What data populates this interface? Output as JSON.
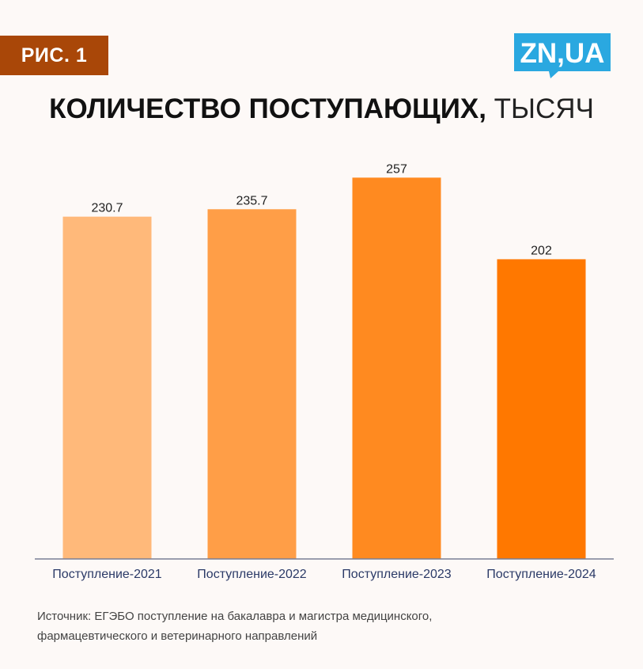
{
  "figure_label": "РИС. 1",
  "logo_text": "ZN,UA",
  "title": {
    "bold_part": "КОЛИЧЕСТВО ПОСТУПАЮЩИХ,",
    "light_part": "ТЫСЯЧ"
  },
  "colors": {
    "badge": "#a94708",
    "logo": "#2aa8e0",
    "axis": "#7a7f96",
    "label_text": "#2b3a67",
    "bars": [
      "#ffb97a",
      "#ff9e47",
      "#ff8a20",
      "#ff7800"
    ]
  },
  "chart_data": {
    "type": "bar",
    "categories": [
      "Поступление-2021",
      "Поступление-2022",
      "Поступление-2023",
      "Поступление-2024"
    ],
    "values": [
      230.7,
      235.7,
      257,
      202
    ],
    "data_labels": [
      "230.7",
      "235.7",
      "257",
      "202"
    ],
    "ylim": [
      0,
      270
    ],
    "grid": false,
    "legend": "none"
  },
  "source": {
    "line1": "Источник: ЕГЭБО поступление на бакалавра и магистра медицинского,",
    "line2": "фармацевтического и ветеринарного направлений"
  }
}
